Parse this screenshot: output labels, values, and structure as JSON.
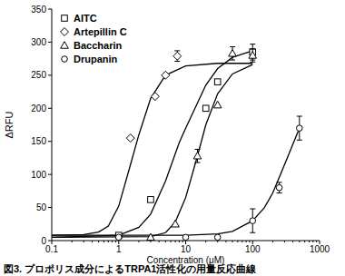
{
  "chart_data": {
    "type": "scatter",
    "title": "図3. プロポリス成分によるTRPA1活性化の用量反応曲線",
    "x_label": "Concentration (μM)",
    "y_label": "ΔRFU",
    "log": "x",
    "legend": "top-left",
    "xlim": [
      0.1,
      1000
    ],
    "xticks": [
      0.1,
      1,
      10,
      100,
      1000
    ],
    "ylim": [
      0,
      350
    ],
    "yticks": [
      0,
      50,
      100,
      150,
      200,
      250,
      300,
      350
    ],
    "series": [
      {
        "name": "AITC",
        "color": "#000000",
        "marker": "square",
        "x": [
          1,
          3,
          20,
          30,
          100
        ],
        "values": [
          8,
          62,
          200,
          240,
          285
        ],
        "errors": [
          0,
          0,
          0,
          0,
          12
        ],
        "fit": {
          "x": [
            0.1,
            1,
            2,
            3,
            5,
            8,
            10,
            20,
            30,
            50,
            100
          ],
          "y": [
            5,
            8,
            20,
            40,
            90,
            148,
            170,
            235,
            260,
            277,
            287
          ]
        }
      },
      {
        "name": "Artepillin C",
        "color": "#000000",
        "marker": "diamond",
        "x": [
          1.5,
          3.5,
          5,
          7.5
        ],
        "values": [
          155,
          218,
          250,
          279
        ],
        "errors": [
          0,
          0,
          0,
          8
        ],
        "fit": {
          "x": [
            0.1,
            0.3,
            0.5,
            0.7,
            1,
            1.5,
            2,
            3,
            5,
            10,
            30,
            100
          ],
          "y": [
            8,
            9,
            13,
            22,
            52,
            115,
            160,
            215,
            250,
            264,
            268,
            268
          ]
        }
      },
      {
        "name": "Baccharin",
        "color": "#000000",
        "marker": "triangle",
        "x": [
          3,
          7,
          15,
          30,
          50,
          100
        ],
        "values": [
          5,
          25,
          128,
          205,
          283,
          280
        ],
        "errors": [
          0,
          0,
          10,
          0,
          10,
          10
        ],
        "fit": {
          "x": [
            0.1,
            3,
            5,
            7,
            10,
            15,
            20,
            30,
            50,
            100
          ],
          "y": [
            5,
            6,
            12,
            28,
            65,
            128,
            175,
            222,
            252,
            266
          ]
        }
      },
      {
        "name": "Drupanin",
        "color": "#000000",
        "marker": "circle",
        "x": [
          1,
          10,
          30,
          100,
          250,
          500
        ],
        "values": [
          5,
          5,
          5,
          30,
          80,
          170
        ],
        "errors": [
          0,
          0,
          0,
          18,
          8,
          18
        ],
        "fit": {
          "x": [
            0.1,
            10,
            30,
            50,
            100,
            150,
            200,
            300,
            500
          ],
          "y": [
            8,
            8,
            10,
            14,
            30,
            50,
            72,
            115,
            170
          ]
        }
      }
    ]
  }
}
